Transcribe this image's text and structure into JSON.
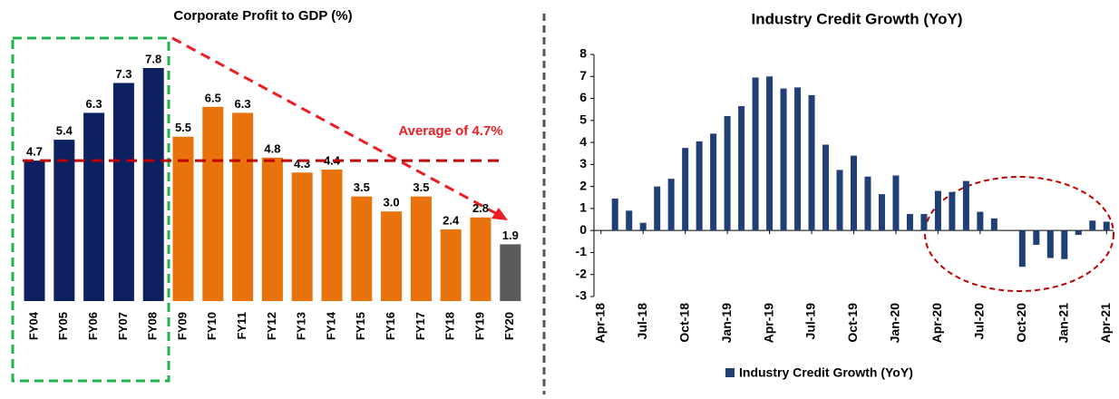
{
  "chart_data": [
    {
      "type": "bar",
      "title": "Corporate Profit to GDP (%)",
      "categories": [
        "FY04",
        "FY05",
        "FY06",
        "FY07",
        "FY08",
        "FY09",
        "FY10",
        "FY11",
        "FY12",
        "FY13",
        "FY14",
        "FY15",
        "FY16",
        "FY17",
        "FY18",
        "FY19",
        "FY20"
      ],
      "values": [
        4.7,
        5.4,
        6.3,
        7.3,
        7.8,
        5.5,
        6.5,
        6.3,
        4.8,
        4.3,
        4.4,
        3.5,
        3.0,
        3.5,
        2.4,
        2.8,
        1.9
      ],
      "value_labels": [
        "4.7",
        "5.4",
        "6.3",
        "7.3",
        "7.8",
        "5.5",
        "6.5",
        "6.3",
        "4.8",
        "4.3",
        "4.4",
        "3.5",
        "3.0",
        "3.5",
        "2.4",
        "2.8",
        "1.9"
      ],
      "colors": [
        "#0d2160",
        "#0d2160",
        "#0d2160",
        "#0d2160",
        "#0d2160",
        "#e8720c",
        "#e8720c",
        "#e8720c",
        "#e8720c",
        "#e8720c",
        "#e8720c",
        "#e8720c",
        "#e8720c",
        "#e8720c",
        "#e8720c",
        "#e8720c",
        "#5a5a5a"
      ],
      "average": 4.7,
      "average_color": "#c00000",
      "annotation": "Average of 4.7%"
    },
    {
      "type": "bar",
      "title": "Industry Credit Growth (YoY)",
      "categories": [
        "Apr-18",
        null,
        null,
        "Jul-18",
        null,
        null,
        "Oct-18",
        null,
        null,
        "Jan-19",
        null,
        null,
        "Apr-19",
        null,
        null,
        "Jul-19",
        null,
        null,
        "Oct-19",
        null,
        null,
        "Jan-20",
        null,
        null,
        "Apr-20",
        null,
        null,
        "Jul-20",
        null,
        null,
        "Oct-20",
        null,
        null,
        "Jan-21",
        null,
        null,
        "Apr-21"
      ],
      "series": [
        {
          "name": "Industry Credit Growth (YoY)",
          "color": "#1f3f75",
          "values": [
            null,
            1.45,
            0.9,
            0.35,
            2.0,
            2.35,
            3.75,
            4.05,
            4.4,
            5.2,
            5.65,
            6.95,
            7.0,
            6.45,
            6.5,
            6.15,
            3.9,
            2.75,
            3.4,
            2.45,
            1.65,
            2.5,
            0.75,
            0.75,
            1.8,
            1.75,
            2.25,
            0.85,
            0.55,
            null,
            -1.65,
            -0.65,
            -1.25,
            -1.3,
            -0.2,
            0.45,
            0.4
          ]
        }
      ],
      "ylim": [
        -3,
        8
      ],
      "yticks": [
        -3,
        -2,
        -1,
        0,
        1,
        2,
        3,
        4,
        5,
        6,
        7,
        8
      ],
      "legend": "bottom"
    }
  ]
}
